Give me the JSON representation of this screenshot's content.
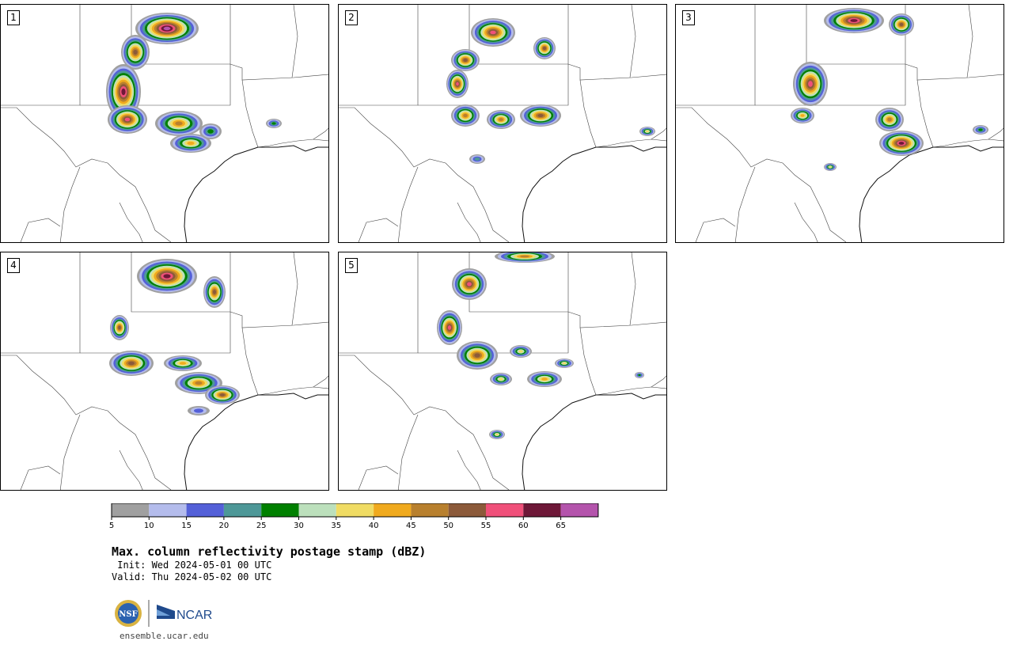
{
  "panels": [
    {
      "label": "1"
    },
    {
      "label": "2"
    },
    {
      "label": "3"
    },
    {
      "label": "4"
    },
    {
      "label": "5"
    }
  ],
  "colorbar": {
    "ticks": [
      "5",
      "10",
      "15",
      "20",
      "25",
      "30",
      "35",
      "40",
      "45",
      "50",
      "55",
      "60",
      "65"
    ],
    "colors": [
      "#a0a0a0",
      "#b4bcec",
      "#5460d8",
      "#4e9898",
      "#008000",
      "#bce0bc",
      "#f0dc64",
      "#f0aa1e",
      "#b8802e",
      "#8c5a3a",
      "#f0507a",
      "#6e1838",
      "#b454ac"
    ]
  },
  "title": "Max. column reflectivity postage stamp (dBZ)",
  "init_line": " Init: Wed 2024-05-01 00 UTC",
  "valid_line": "Valid: Thu 2024-05-02 00 UTC",
  "logo": {
    "nsf": "NSF",
    "ncar": "NCAR"
  },
  "url": "ensemble.ucar.edu"
}
